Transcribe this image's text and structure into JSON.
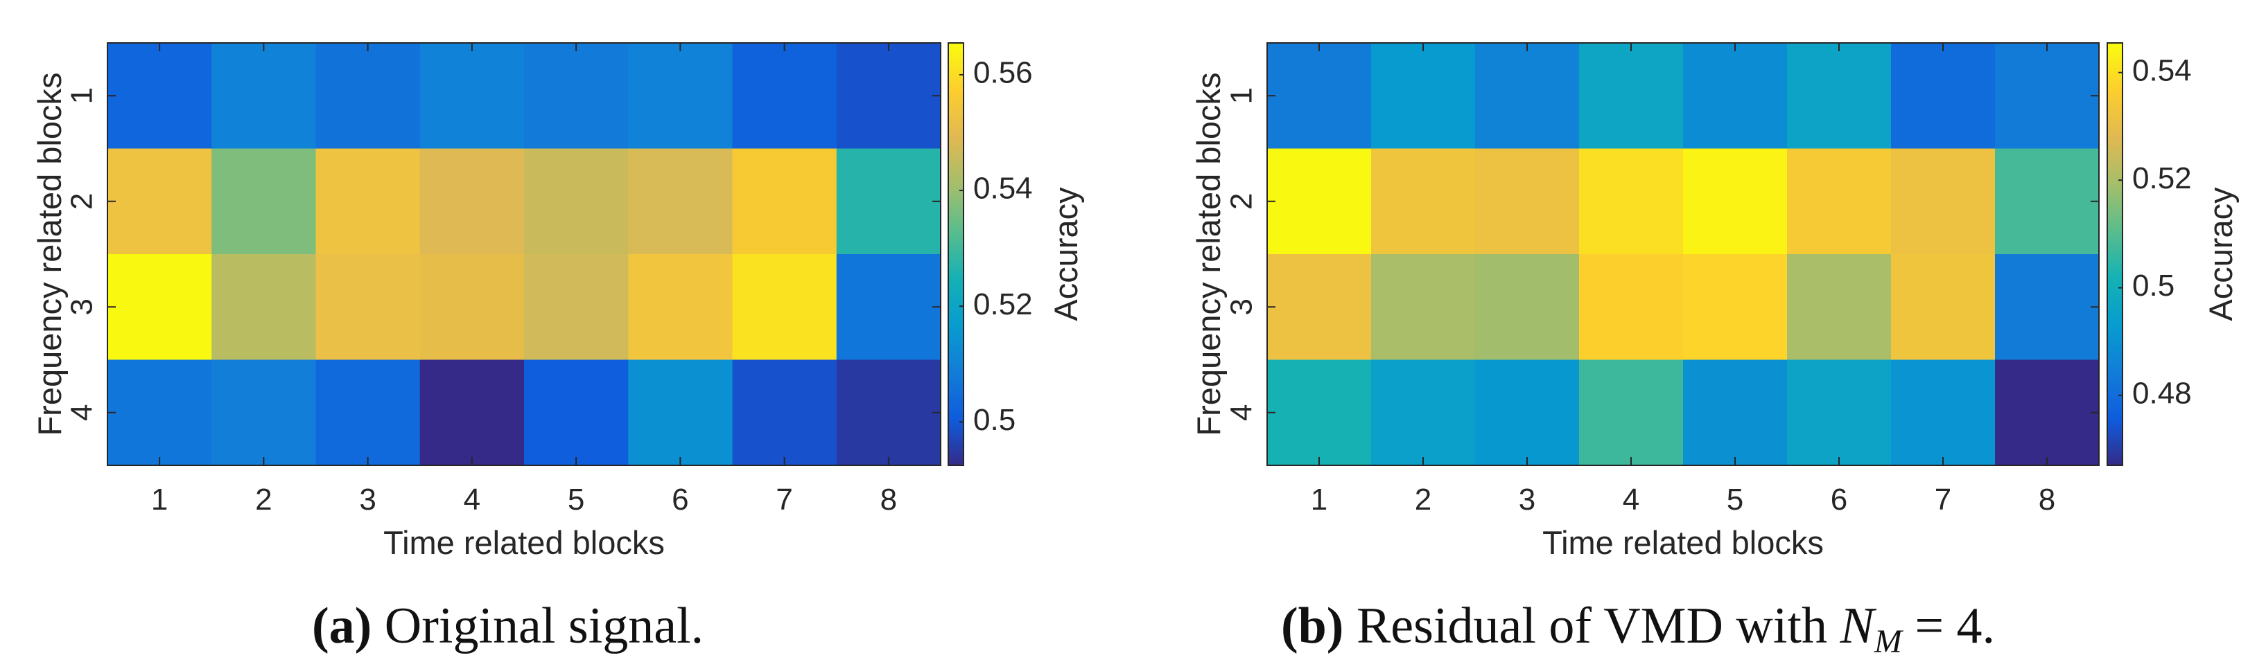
{
  "chart_data": [
    {
      "type": "heatmap",
      "title": "",
      "xlabel": "Time related blocks",
      "ylabel": "Frequency related blocks",
      "x_categories": [
        "1",
        "2",
        "3",
        "4",
        "5",
        "6",
        "7",
        "8"
      ],
      "y_categories": [
        "1",
        "2",
        "3",
        "4"
      ],
      "values": [
        [
          0.503,
          0.51,
          0.506,
          0.51,
          0.508,
          0.51,
          0.502,
          0.499
        ],
        [
          0.553,
          0.537,
          0.553,
          0.549,
          0.546,
          0.548,
          0.556,
          0.527
        ],
        [
          0.565,
          0.544,
          0.552,
          0.551,
          0.547,
          0.554,
          0.561,
          0.507
        ],
        [
          0.507,
          0.509,
          0.504,
          0.492,
          0.501,
          0.514,
          0.499,
          0.495
        ]
      ],
      "colorbar": {
        "label": "Accuracy",
        "range": [
          0.4925,
          0.5655
        ],
        "ticks": [
          "0.5",
          "0.52",
          "0.54",
          "0.56"
        ],
        "tick_values": [
          0.5,
          0.52,
          0.54,
          0.56
        ]
      },
      "caption": {
        "letter": "(a)",
        "text": "Original signal."
      }
    },
    {
      "type": "heatmap",
      "title": "",
      "xlabel": "Time related blocks",
      "ylabel": "Frequency related blocks",
      "x_categories": [
        "1",
        "2",
        "3",
        "4",
        "5",
        "6",
        "7",
        "8"
      ],
      "y_categories": [
        "1",
        "2",
        "3",
        "4"
      ],
      "values": [
        [
          0.484,
          0.493,
          0.486,
          0.497,
          0.489,
          0.496,
          0.48,
          0.484
        ],
        [
          0.545,
          0.533,
          0.532,
          0.54,
          0.544,
          0.535,
          0.532,
          0.508
        ],
        [
          0.532,
          0.52,
          0.519,
          0.537,
          0.538,
          0.52,
          0.533,
          0.484
        ],
        [
          0.502,
          0.495,
          0.492,
          0.507,
          0.49,
          0.496,
          0.491,
          0.467
        ]
      ],
      "colorbar": {
        "label": "Accuracy",
        "range": [
          0.467,
          0.5455
        ],
        "ticks": [
          "0.48",
          "0.5",
          "0.52",
          "0.54"
        ],
        "tick_values": [
          0.48,
          0.5,
          0.52,
          0.54
        ]
      },
      "caption": {
        "letter": "(b)",
        "prefix": "Residual of VMD with ",
        "symbol": "N",
        "subscript": "M",
        "suffix": " = 4."
      }
    }
  ]
}
